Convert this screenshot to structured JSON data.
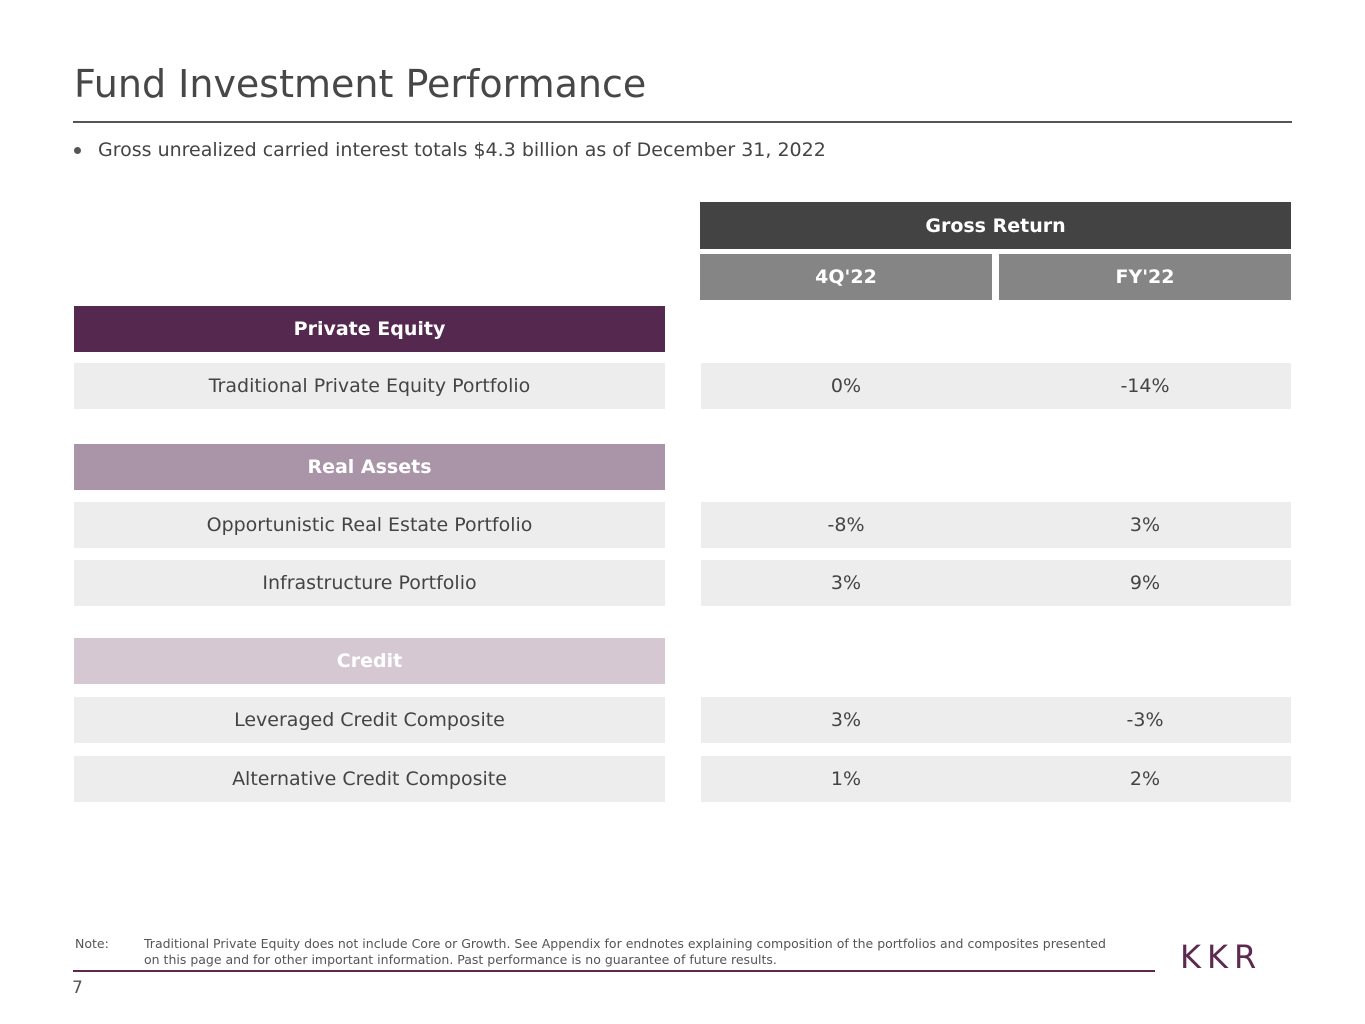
{
  "page": {
    "title": "Fund Investment Performance",
    "bullet": "Gross unrealized carried interest totals $4.3 billion as of December 31, 2022",
    "page_number": "7",
    "logo_text": "KKR"
  },
  "table": {
    "header": "Gross Return",
    "columns": [
      "4Q'22",
      "FY'22"
    ],
    "categories": [
      {
        "label": "Private Equity",
        "color": "#55284f"
      },
      {
        "label": "Real Assets",
        "color": "#a994a8"
      },
      {
        "label": "Credit",
        "color": "#d5c8d3"
      }
    ],
    "rows": [
      {
        "label": "Traditional Private Equity Portfolio",
        "q4": "0%",
        "fy": "-14%"
      },
      {
        "label": "Opportunistic Real Estate Portfolio",
        "q4": "-8%",
        "fy": "3%"
      },
      {
        "label": "Infrastructure Portfolio",
        "q4": "3%",
        "fy": "9%"
      },
      {
        "label": "Leveraged Credit Composite",
        "q4": "3%",
        "fy": "-3%"
      },
      {
        "label": "Alternative Credit Composite",
        "q4": "1%",
        "fy": "2%"
      }
    ]
  },
  "note": {
    "label": "Note:",
    "text": "Traditional Private Equity does not include Core or Growth. See Appendix for endnotes explaining composition of the portfolios and composites presented on this page and for other important information. Past performance is no guarantee of future results."
  },
  "colors": {
    "brand": "#5b2a4e",
    "header_dark": "#434343",
    "header_mid": "#858585",
    "row_bg": "#ededed"
  }
}
